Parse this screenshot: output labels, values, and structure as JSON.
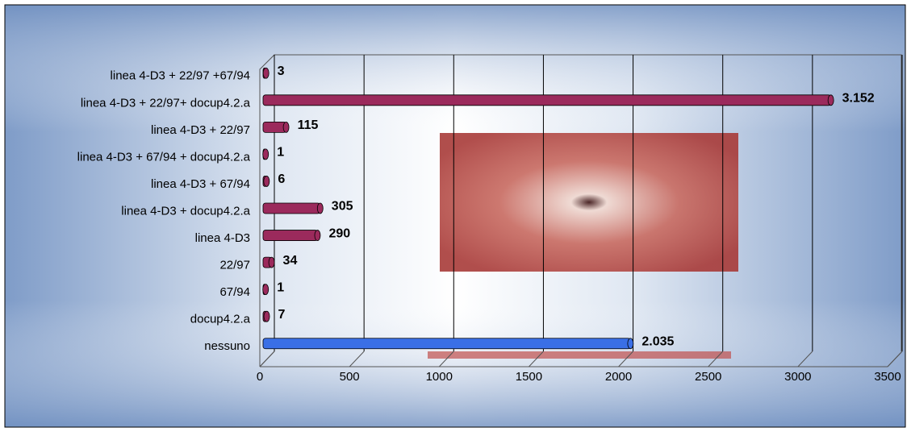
{
  "chart_data": {
    "type": "bar",
    "horizontal": true,
    "categories": [
      "linea 4-D3 + 22/97 +67/94",
      "linea 4-D3 + 22/97+ docup4.2.a",
      "linea 4-D3 + 22/97",
      "linea 4-D3 + 67/94 + docup4.2.a",
      "linea 4-D3 + 67/94",
      "linea 4-D3 + docup4.2.a",
      "linea 4-D3",
      "22/97",
      "67/94",
      "docup4.2.a",
      "nessuno"
    ],
    "values": [
      3,
      3152,
      115,
      1,
      6,
      305,
      290,
      34,
      1,
      7,
      2035
    ],
    "value_labels": [
      "3",
      "3.152",
      "115",
      "1",
      "6",
      "305",
      "290",
      "34",
      "1",
      "7",
      "2.035"
    ],
    "colors": [
      "#9b2a5c",
      "#9b2a5c",
      "#9b2a5c",
      "#9b2a5c",
      "#9b2a5c",
      "#9b2a5c",
      "#9b2a5c",
      "#9b2a5c",
      "#9b2a5c",
      "#9b2a5c",
      "#3a6fe6"
    ],
    "xlim": [
      0,
      3500
    ],
    "xticks": [
      0,
      500,
      1000,
      1500,
      2000,
      2500,
      3000,
      3500
    ],
    "grid": true
  }
}
